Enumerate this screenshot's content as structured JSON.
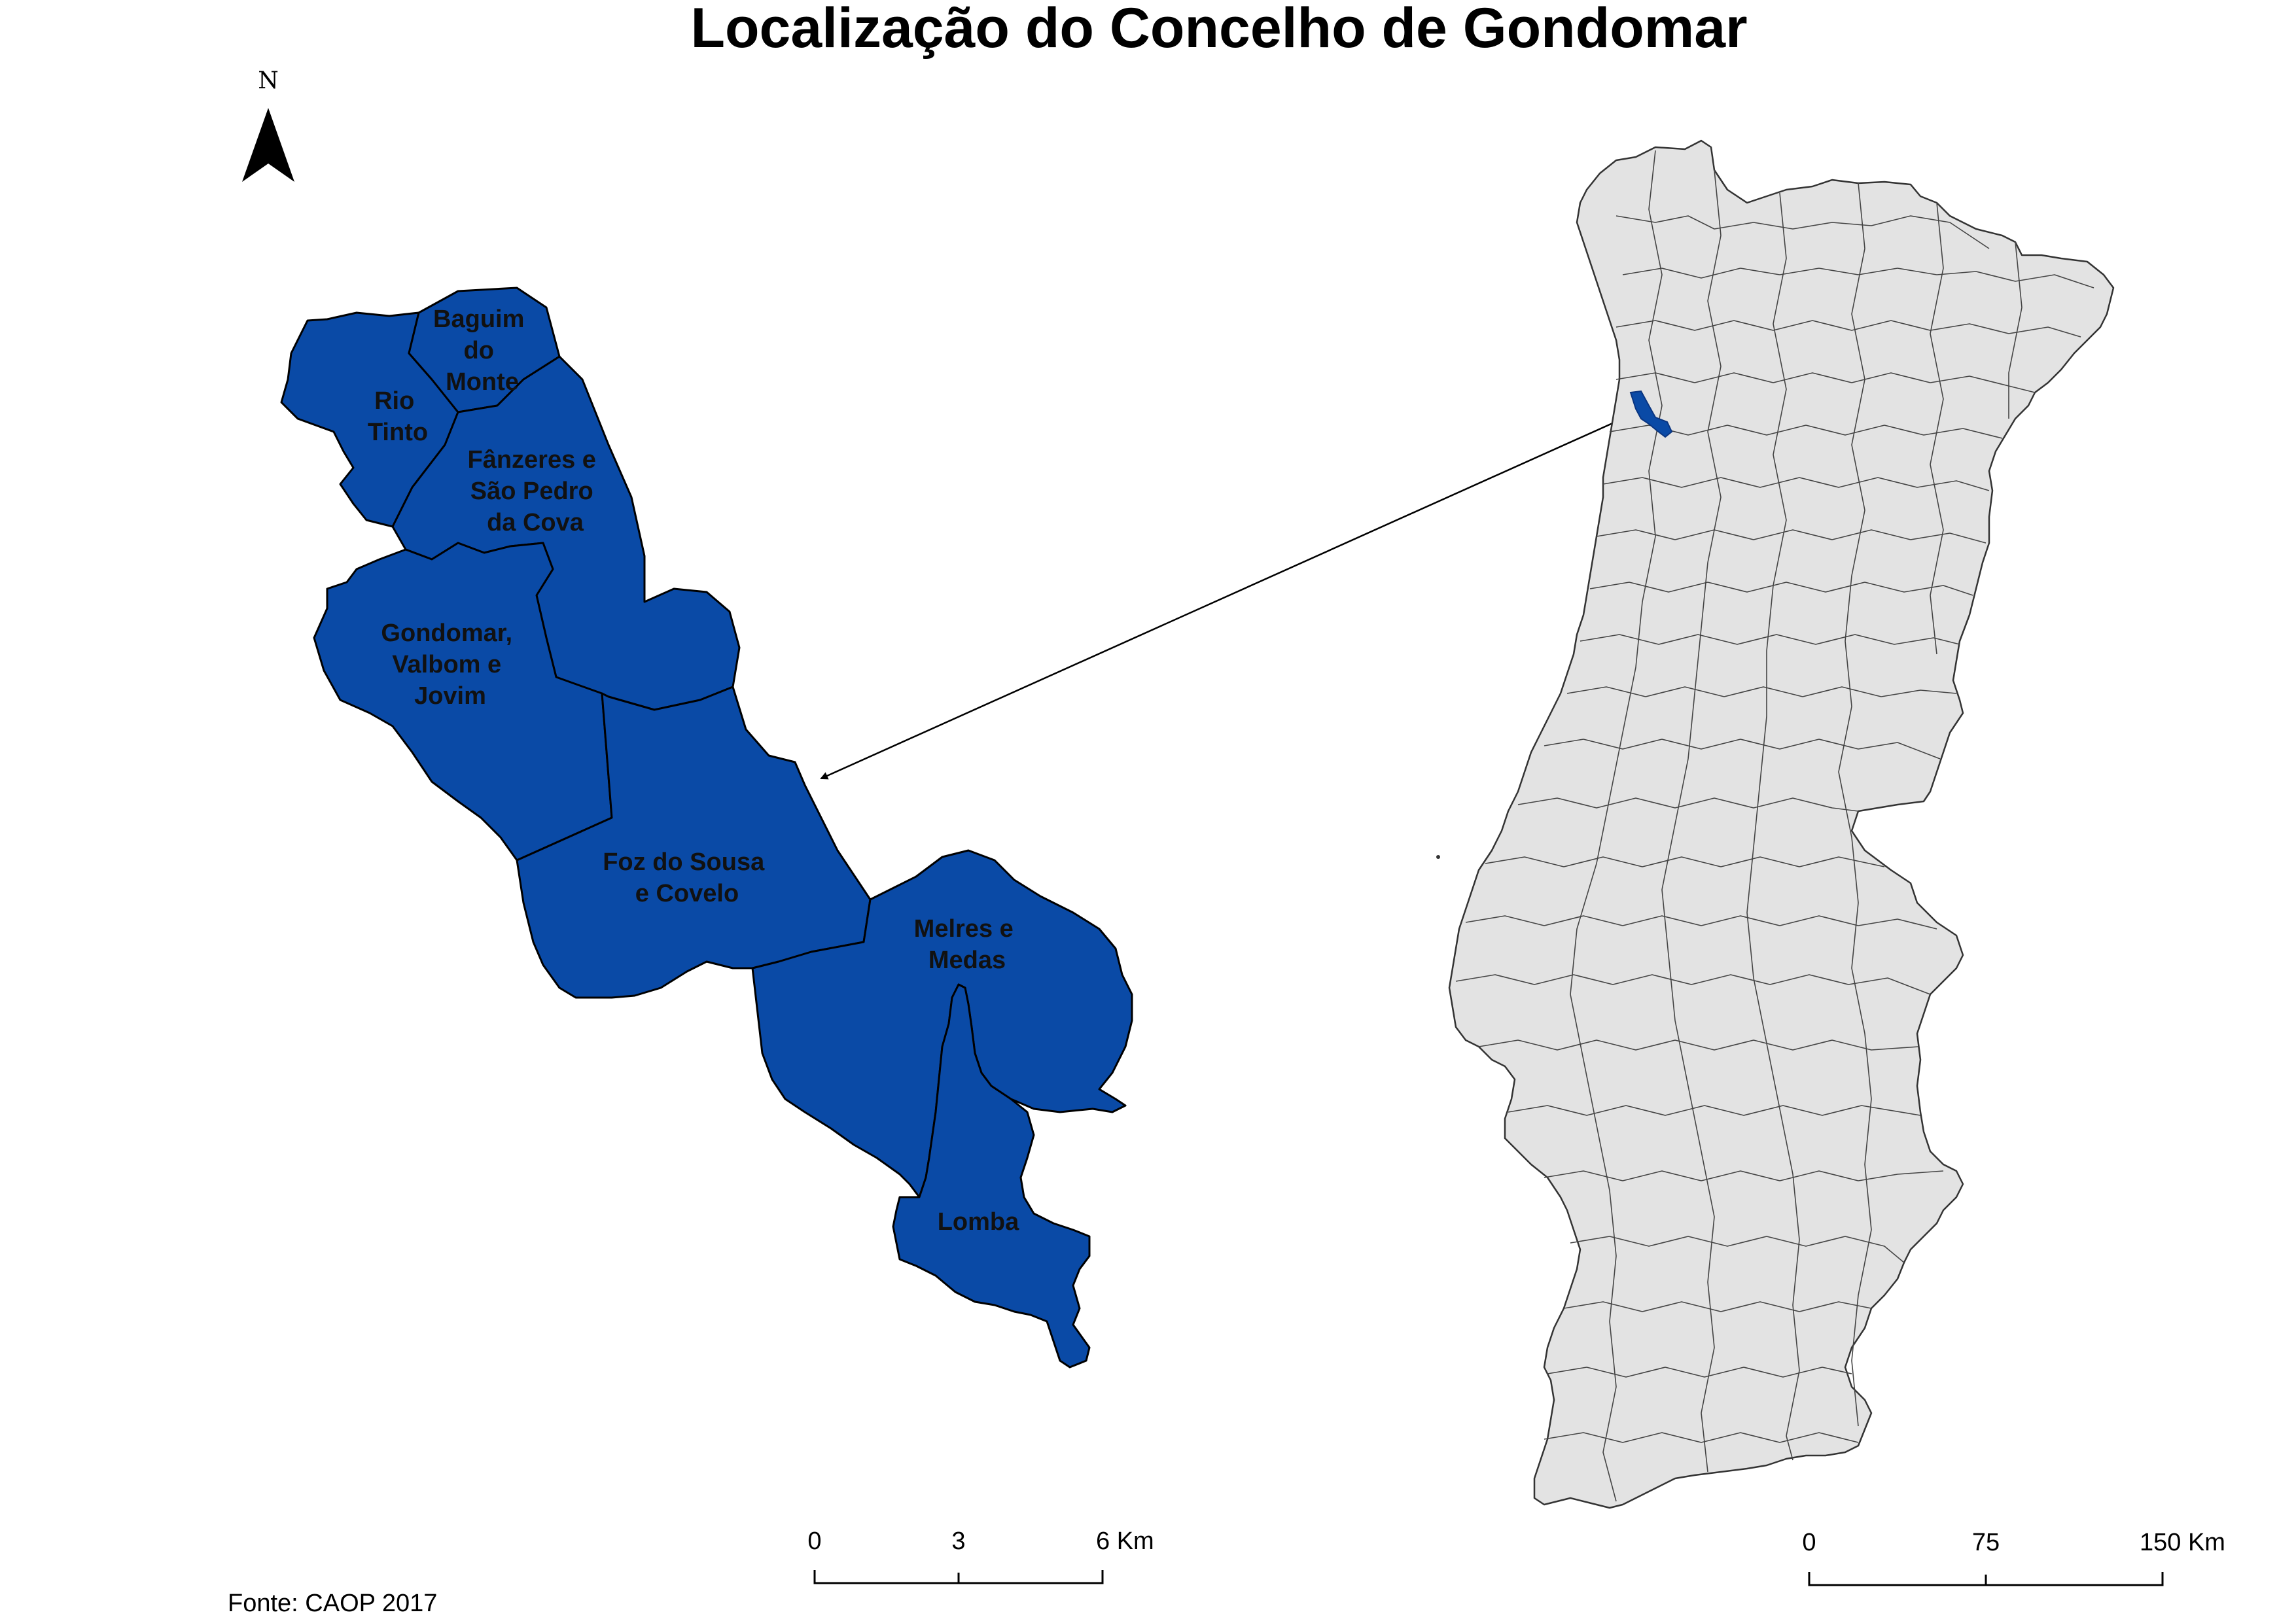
{
  "title": "Localização do Concelho de Gondomar",
  "north_arrow": {
    "label": "N",
    "icon": "north-arrow-icon"
  },
  "parishes": [
    {
      "id": "baguim",
      "lines": [
        "Baguim",
        "do",
        "Monte"
      ]
    },
    {
      "id": "rio-tinto",
      "lines": [
        "Rio",
        "Tinto"
      ]
    },
    {
      "id": "fanzeres",
      "lines": [
        "Fânzeres e",
        "São Pedro",
        "da Cova"
      ]
    },
    {
      "id": "gondomar",
      "lines": [
        "Gondomar,",
        "Valbom e",
        "Jovim"
      ]
    },
    {
      "id": "foz-do-sousa",
      "lines": [
        "Foz do Sousa",
        "e Covelo"
      ]
    },
    {
      "id": "melres",
      "lines": [
        "Melres e",
        "Medas"
      ]
    },
    {
      "id": "lomba",
      "lines": [
        "Lomba"
      ]
    }
  ],
  "scale_bar_detail": {
    "ticks": [
      "0",
      "3",
      "6 Km"
    ]
  },
  "scale_bar_country": {
    "ticks": [
      "0",
      "75",
      "150 Km"
    ]
  },
  "source": "Fonte: CAOP 2017",
  "colors": {
    "parish_fill": "#0a4aa6",
    "country_fill": "#e3e3e3",
    "outline": "#000000"
  }
}
